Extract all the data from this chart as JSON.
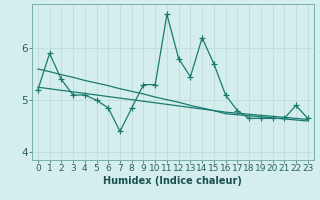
{
  "xlabel": "Humidex (Indice chaleur)",
  "background_color": "#d4eeed",
  "line_color": "#1a7a6e",
  "grid_color": "#c0dbd8",
  "x": [
    0,
    1,
    2,
    3,
    4,
    5,
    6,
    7,
    8,
    9,
    10,
    11,
    12,
    13,
    14,
    15,
    16,
    17,
    18,
    19,
    20,
    21,
    22,
    23
  ],
  "y_main": [
    5.2,
    5.9,
    5.4,
    5.1,
    5.1,
    5.0,
    4.85,
    4.4,
    4.85,
    5.3,
    5.3,
    6.65,
    5.8,
    5.45,
    6.2,
    5.7,
    5.1,
    4.8,
    4.65,
    4.65,
    4.65,
    4.65,
    4.9,
    4.65
  ],
  "y_trend1": [
    5.6,
    5.55,
    5.49,
    5.44,
    5.38,
    5.33,
    5.28,
    5.22,
    5.17,
    5.12,
    5.06,
    5.01,
    4.96,
    4.9,
    4.85,
    4.8,
    4.74,
    4.72,
    4.7,
    4.68,
    4.66,
    4.64,
    4.62,
    4.6
  ],
  "y_trend2": [
    5.25,
    5.22,
    5.19,
    5.16,
    5.13,
    5.1,
    5.07,
    5.04,
    5.01,
    4.98,
    4.95,
    4.92,
    4.89,
    4.86,
    4.83,
    4.8,
    4.77,
    4.75,
    4.73,
    4.71,
    4.69,
    4.67,
    4.65,
    4.63
  ],
  "ylim": [
    3.85,
    6.85
  ],
  "xlim": [
    -0.5,
    23.5
  ],
  "yticks": [
    4,
    5,
    6
  ],
  "xticks": [
    0,
    1,
    2,
    3,
    4,
    5,
    6,
    7,
    8,
    9,
    10,
    11,
    12,
    13,
    14,
    15,
    16,
    17,
    18,
    19,
    20,
    21,
    22,
    23
  ],
  "xlabel_fontsize": 7,
  "tick_fontsize": 6.5
}
